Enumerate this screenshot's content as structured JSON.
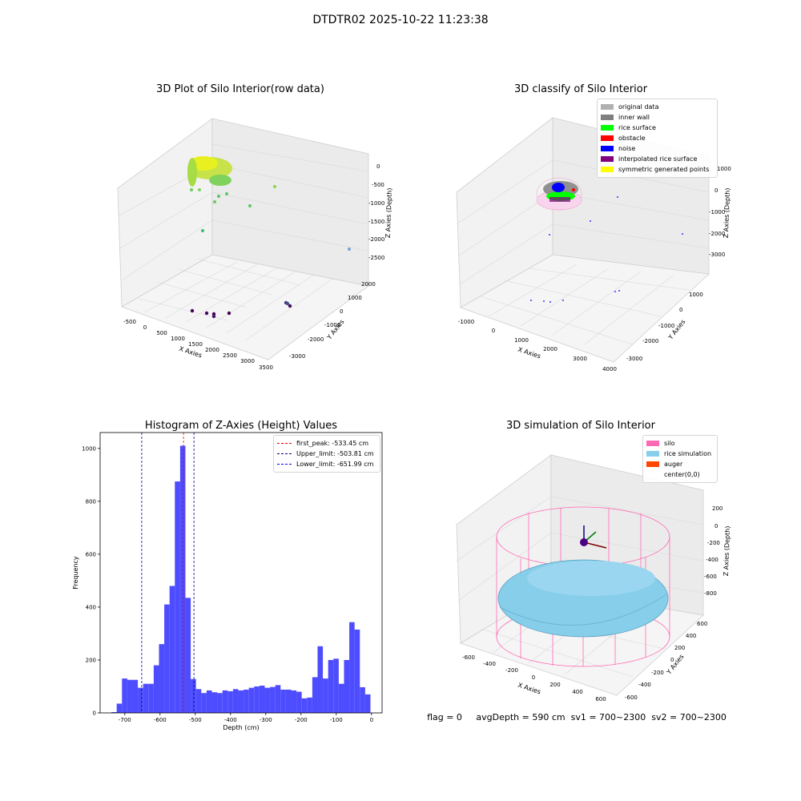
{
  "figure_title": "DTDTR02 2025-10-22 11:23:38",
  "status_line": "flag = 0     avgDepth = 590 cm  sv1 = 700~2300  sv2 = 700~2300",
  "colors": {
    "hist_bar": "#4d4dff",
    "first_peak": "#ff0000",
    "limits": "#00008b",
    "silo": "#ff69b4",
    "rice_simulation": "#87ceeb",
    "auger": "#ff4500"
  },
  "chart_data": [
    {
      "type": "scatter",
      "panel": "top-left",
      "title": "3D Plot of Silo Interior(row data)",
      "xlabel": "X Axies",
      "ylabel": "Y Axies",
      "zlabel": "Z Axies (Depth)",
      "x_ticks": [
        "-500",
        "0",
        "500",
        "1000",
        "1500",
        "2000",
        "2500",
        "3000",
        "3500"
      ],
      "y_ticks": [
        "-3000",
        "-2000",
        "-1000",
        "0",
        "1000",
        "2000"
      ],
      "z_ticks": [
        "0",
        "-500",
        "-1000",
        "-1500",
        "-2000",
        "-2500"
      ],
      "grid": true
    },
    {
      "type": "scatter",
      "panel": "top-right",
      "title": "3D classify of Silo Interior",
      "xlabel": "X Axies",
      "ylabel": "Y Axies",
      "zlabel": "Z Axies (Depth)",
      "x_ticks": [
        "-1000",
        "0",
        "1000",
        "2000",
        "3000",
        "4000"
      ],
      "y_ticks": [
        "-3000",
        "-2000",
        "-1000",
        "0",
        "1000"
      ],
      "z_ticks": [
        "1000",
        "0",
        "-1000",
        "-2000",
        "-3000"
      ],
      "legend_position": "top-right",
      "legend": [
        {
          "label": "original data",
          "color": "#b0b0b0"
        },
        {
          "label": "inner wall",
          "color": "#808080"
        },
        {
          "label": "rice surface",
          "color": "#00ff00"
        },
        {
          "label": "obstacle",
          "color": "#ff0000"
        },
        {
          "label": "noise",
          "color": "#0000ff"
        },
        {
          "label": "interpolated rice surface",
          "color": "#800080"
        },
        {
          "label": "symmetric generated points",
          "color": "#ffff00"
        }
      ],
      "grid": true
    },
    {
      "type": "bar",
      "panel": "bottom-left",
      "title": "Histogram of Z-Axies (Height) Values",
      "xlabel": "Depth (cm)",
      "ylabel": "Frequency",
      "xlim": [
        -770,
        30
      ],
      "ylim": [
        0,
        1060
      ],
      "x_ticks": [
        "-700",
        "-600",
        "-500",
        "-400",
        "-300",
        "-200",
        "-100",
        "0"
      ],
      "x_tick_values": [
        -700,
        -600,
        -500,
        -400,
        -300,
        -200,
        -100,
        0
      ],
      "y_ticks": [
        "0",
        "200",
        "400",
        "600",
        "800",
        "1000"
      ],
      "y_tick_values": [
        0,
        200,
        400,
        600,
        800,
        1000
      ],
      "bin_start": -738,
      "bin_width": 15,
      "values": [
        3,
        35,
        130,
        125,
        125,
        95,
        110,
        110,
        180,
        260,
        410,
        480,
        875,
        1010,
        435,
        128,
        90,
        75,
        85,
        78,
        75,
        85,
        82,
        90,
        85,
        88,
        95,
        100,
        103,
        95,
        98,
        105,
        88,
        88,
        85,
        80,
        55,
        58,
        135,
        252,
        130,
        200,
        205,
        110,
        200,
        343,
        315,
        97,
        70
      ],
      "reference_lines": [
        {
          "label": "first_peak: -533.45 cm",
          "x": -533.45,
          "color": "#ff0000"
        },
        {
          "label": "Upper_limit: -503.81 cm",
          "x": -503.81,
          "color": "#00008b"
        },
        {
          "label": "Lower_limit: -651.99 cm",
          "x": -651.99,
          "color": "#00008b"
        }
      ],
      "legend_position": "top-right",
      "grid": false
    },
    {
      "type": "scatter",
      "panel": "bottom-right",
      "title": "3D simulation of Silo Interior",
      "xlabel": "X Axies",
      "ylabel": "Y Axies",
      "zlabel": "Z Axies (Depth)",
      "x_ticks": [
        "-600",
        "-400",
        "-200",
        "0",
        "200",
        "400",
        "600"
      ],
      "y_ticks": [
        "-600",
        "-400",
        "-200",
        "0",
        "200",
        "400",
        "600"
      ],
      "z_ticks": [
        "200",
        "0",
        "-200",
        "-400",
        "-600",
        "-800"
      ],
      "legend_position": "top-right",
      "legend": [
        {
          "label": "silo",
          "color": "#ff69b4"
        },
        {
          "label": "rice simulation",
          "color": "#87ceeb"
        },
        {
          "label": "auger",
          "color": "#ff4500"
        },
        {
          "label": "center(0,0)",
          "color": ""
        }
      ],
      "grid": true
    }
  ]
}
